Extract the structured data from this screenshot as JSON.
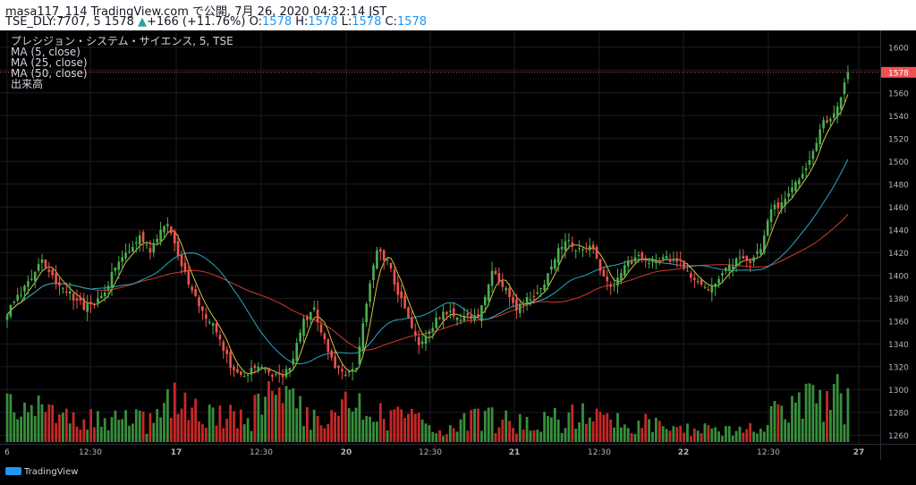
{
  "header": {
    "line1": "masa117_114 TradingView.com で公開, 7月 26, 2020 04:32:14 JST",
    "symbol": "TSE_DLY:7707, 5",
    "price": "1578",
    "change_arrow": "▲",
    "change": "+166 (+11.76%)",
    "o_label": "O:",
    "o_value": "1578",
    "h_label": "H:",
    "h_value": "1578",
    "l_label": "L:",
    "l_value": "1578",
    "c_label": "C:",
    "c_value": "1578"
  },
  "legend": {
    "title": "プレシジョン・システム・サイエンス, 5, TSE",
    "ma5": "MA (5, close)",
    "ma25": "MA (25, close)",
    "ma50": "MA (50, close)",
    "volume": "出来高"
  },
  "footer": {
    "brand": "TradingView"
  },
  "colors": {
    "up": "#4caf50",
    "down": "#ef5350",
    "vol_up": "#388e3c",
    "vol_down": "#c62828",
    "ma5": "#d4c441",
    "ma25": "#26a9c6",
    "ma50": "#d23a2c",
    "price_label_bg": "#ef5350",
    "grid": "#1b1d24",
    "axis_text": "#b2b5be"
  },
  "chart_data": {
    "type": "candlestick",
    "y_ticks": [
      1600,
      1580,
      1560,
      1540,
      1520,
      1500,
      1480,
      1460,
      1440,
      1420,
      1400,
      1380,
      1360,
      1340,
      1320,
      1300,
      1280,
      1260
    ],
    "ylim": [
      1254,
      1610
    ],
    "x_tick_labels": [
      "6",
      "12:30",
      "17",
      "12:30",
      "20",
      "12:30",
      "21",
      "12:30",
      "22",
      "12:30",
      "27"
    ],
    "last_price": 1578,
    "series": [
      "MA (5, close)",
      "MA (25, close)",
      "MA (50, close)",
      "出来高"
    ],
    "keypoints": [
      [
        0,
        1368
      ],
      [
        6,
        1395
      ],
      [
        10,
        1413
      ],
      [
        15,
        1392
      ],
      [
        22,
        1372
      ],
      [
        27,
        1380
      ],
      [
        31,
        1408
      ],
      [
        35,
        1420
      ],
      [
        38,
        1432
      ],
      [
        41,
        1420
      ],
      [
        44,
        1441
      ],
      [
        46,
        1448
      ],
      [
        48,
        1426
      ],
      [
        52,
        1392
      ],
      [
        56,
        1368
      ],
      [
        60,
        1352
      ],
      [
        64,
        1322
      ],
      [
        68,
        1312
      ],
      [
        72,
        1320
      ],
      [
        76,
        1313
      ],
      [
        79,
        1308
      ],
      [
        82,
        1328
      ],
      [
        85,
        1360
      ],
      [
        88,
        1370
      ],
      [
        91,
        1342
      ],
      [
        94,
        1318
      ],
      [
        97,
        1312
      ],
      [
        100,
        1322
      ],
      [
        103,
        1376
      ],
      [
        106,
        1424
      ],
      [
        109,
        1412
      ],
      [
        112,
        1385
      ],
      [
        115,
        1362
      ],
      [
        118,
        1340
      ],
      [
        121,
        1352
      ],
      [
        125,
        1368
      ],
      [
        130,
        1364
      ],
      [
        135,
        1365
      ],
      [
        139,
        1402
      ],
      [
        142,
        1392
      ],
      [
        146,
        1372
      ],
      [
        150,
        1380
      ],
      [
        154,
        1392
      ],
      [
        157,
        1416
      ],
      [
        160,
        1432
      ],
      [
        163,
        1422
      ],
      [
        166,
        1426
      ],
      [
        168,
        1425
      ],
      [
        171,
        1398
      ],
      [
        174,
        1390
      ],
      [
        177,
        1410
      ],
      [
        181,
        1416
      ],
      [
        185,
        1411
      ],
      [
        189,
        1416
      ],
      [
        192,
        1414
      ],
      [
        195,
        1404
      ],
      [
        198,
        1392
      ],
      [
        201,
        1385
      ],
      [
        204,
        1396
      ],
      [
        207,
        1408
      ],
      [
        210,
        1414
      ],
      [
        213,
        1413
      ],
      [
        216,
        1425
      ],
      [
        219,
        1460
      ],
      [
        222,
        1462
      ],
      [
        225,
        1478
      ],
      [
        228,
        1486
      ],
      [
        231,
        1510
      ],
      [
        234,
        1534
      ],
      [
        237,
        1542
      ],
      [
        239,
        1556
      ],
      [
        241,
        1578
      ]
    ],
    "volume_keypoints": [
      [
        0,
        50
      ],
      [
        20,
        30
      ],
      [
        40,
        28
      ],
      [
        48,
        52
      ],
      [
        60,
        45
      ],
      [
        70,
        40
      ],
      [
        78,
        60
      ],
      [
        85,
        45
      ],
      [
        94,
        40
      ],
      [
        99,
        50
      ],
      [
        110,
        35
      ],
      [
        125,
        20
      ],
      [
        135,
        35
      ],
      [
        150,
        22
      ],
      [
        165,
        40
      ],
      [
        175,
        30
      ],
      [
        190,
        20
      ],
      [
        205,
        15
      ],
      [
        215,
        20
      ],
      [
        220,
        40
      ],
      [
        230,
        55
      ],
      [
        236,
        65
      ],
      [
        241,
        50
      ]
    ]
  }
}
